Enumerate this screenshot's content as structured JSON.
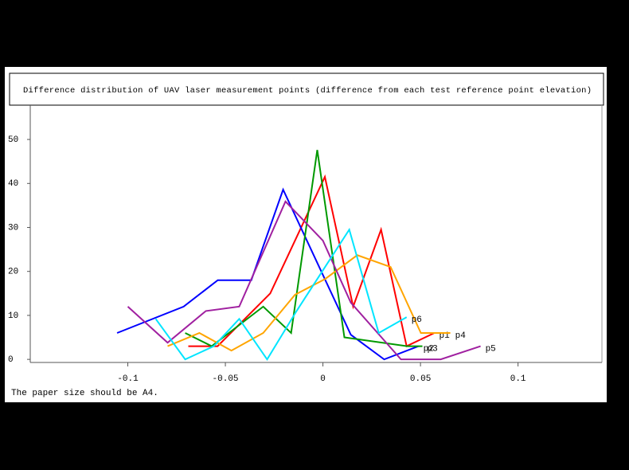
{
  "chart_data": {
    "type": "line",
    "title": "Difference distribution of UAV laser measurement points (difference from each test reference point elevation)",
    "xlim": [
      -0.15,
      0.143
    ],
    "ylim": [
      -0.7,
      57.8
    ],
    "xticks": [
      -0.1,
      -0.05,
      0,
      0.05,
      0.1
    ],
    "yticks": [
      0,
      10,
      20,
      30,
      40,
      50
    ],
    "grid": false,
    "series": [
      {
        "name": "p1",
        "color": "#ff0000",
        "x": [
          -0.069,
          -0.054,
          -0.027,
          0.001,
          0.0155,
          0.0298,
          0.0429,
          0.0571
        ],
        "values": [
          3,
          3,
          15,
          41.5,
          12,
          29.5,
          3,
          6
        ]
      },
      {
        "name": "p2",
        "color": "#0000ff",
        "x": [
          -0.1055,
          -0.0714,
          -0.0539,
          -0.0367,
          -0.0204,
          0.0143,
          0.0314,
          0.049
        ],
        "values": [
          6,
          12,
          18,
          18,
          38.6,
          5.6,
          0,
          3
        ]
      },
      {
        "name": "p3",
        "color": "#009900",
        "x": [
          -0.0706,
          -0.057,
          -0.0306,
          -0.0163,
          -0.0029,
          0.011,
          0.043,
          0.051
        ],
        "values": [
          6,
          3,
          12,
          6,
          47.6,
          5,
          3,
          3
        ]
      },
      {
        "name": "p4",
        "color": "#ffa500",
        "x": [
          -0.0796,
          -0.0633,
          -0.0469,
          -0.0306,
          -0.0143,
          0.0012,
          0.0176,
          0.0347,
          0.0502,
          0.0653
        ],
        "values": [
          3,
          6,
          2,
          6,
          14.7,
          18.3,
          23.7,
          21,
          6,
          6
        ]
      },
      {
        "name": "p5",
        "color": "#a020a0",
        "x": [
          -0.1,
          -0.0796,
          -0.06,
          -0.0429,
          -0.0192,
          0,
          0.0143,
          0.04,
          0.0604,
          0.0808
        ],
        "values": [
          12,
          3.8,
          11,
          12,
          35.9,
          27,
          12.9,
          0,
          0,
          3
        ]
      },
      {
        "name": "p6",
        "color": "#00e5ff",
        "x": [
          -0.0857,
          -0.0706,
          -0.0559,
          -0.0429,
          -0.0286,
          -0.0135,
          0.0135,
          0.0286,
          0.0429
        ],
        "values": [
          9.2,
          0,
          3,
          9.2,
          0,
          11,
          29.5,
          6,
          9.6
        ]
      }
    ]
  },
  "footer": "The paper size should be A4."
}
